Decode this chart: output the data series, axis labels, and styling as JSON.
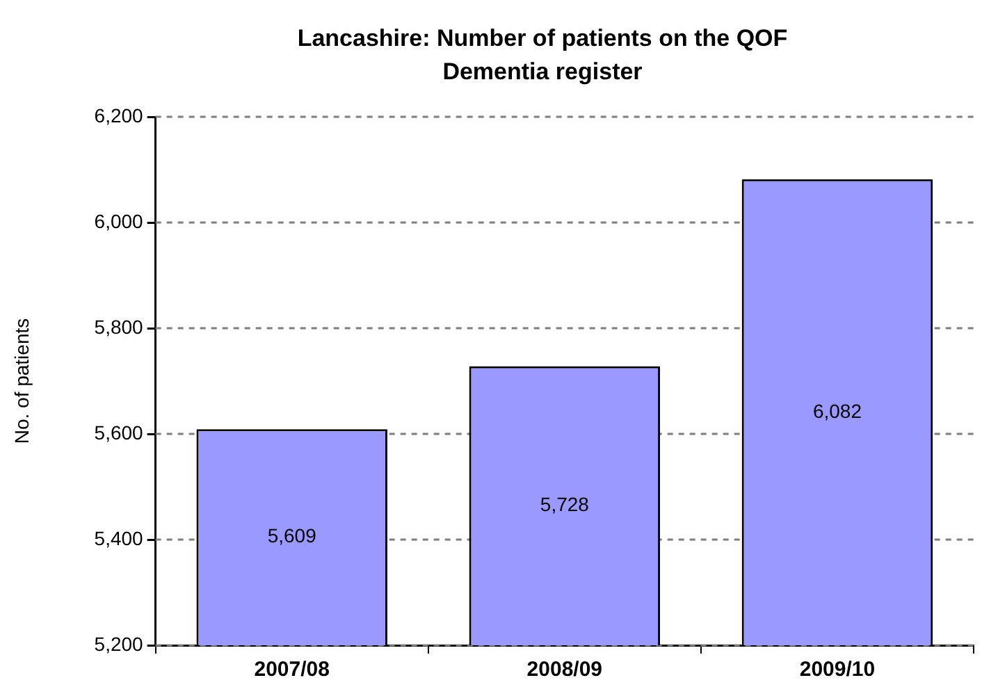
{
  "chart_data": {
    "type": "bar",
    "title": "Lancashire: Number of patients on the QOF Dementia register",
    "ylabel": "No. of patients",
    "categories": [
      "2007/08",
      "2008/09",
      "2009/10"
    ],
    "values": [
      5609,
      5728,
      6082
    ],
    "color": "#9999ff",
    "value_labels": [
      "5,609",
      "5,728",
      "6,082"
    ],
    "ylim": [
      5200,
      6200
    ],
    "yticks": [
      {
        "value": 5200,
        "label": "5,200"
      },
      {
        "value": 5400,
        "label": "5,400"
      },
      {
        "value": 5600,
        "label": "5,600"
      },
      {
        "value": 5800,
        "label": "5,800"
      },
      {
        "value": 6000,
        "label": "6,000"
      },
      {
        "value": 6200,
        "label": "6,200"
      }
    ],
    "grid": "y"
  }
}
